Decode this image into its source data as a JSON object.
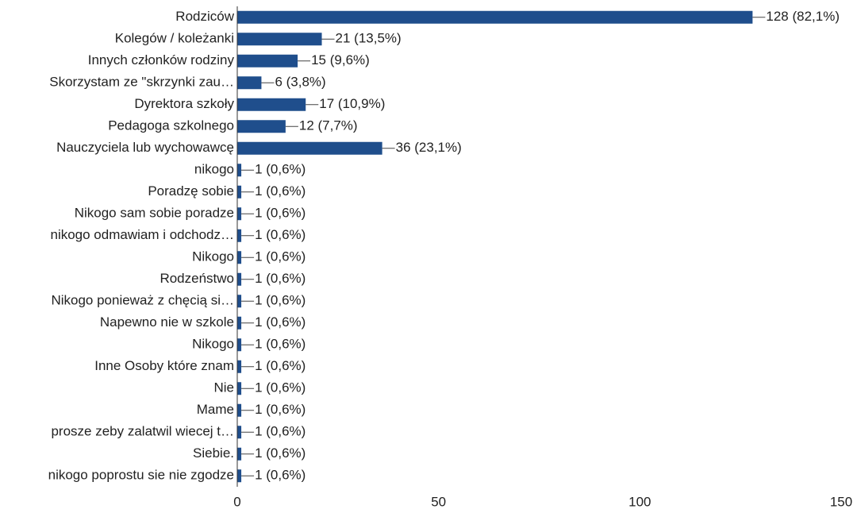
{
  "chart_data": {
    "type": "bar",
    "orientation": "horizontal",
    "categories": [
      "Rodziców",
      "Kolegów / koleżanki",
      "Innych członków rodziny",
      "Skorzystam ze \"skrzynki zau…",
      "Dyrektora szkoły",
      "Pedagoga szkolnego",
      "Nauczyciela lub wychowawcę",
      "nikogo",
      "Poradzę sobie",
      "Nikogo sam sobie poradze",
      "nikogo odmawiam i odchodz…",
      "Nikogo",
      "Rodzeństwo",
      "Nikogo ponieważ z chęcią si…",
      "Napewno nie w szkole",
      "Nikogo",
      "Inne Osoby które znam",
      "Nie",
      "Mame",
      "prosze zeby zalatwil wiecej t…",
      "Siebie.",
      "nikogo poprostu sie nie zgodze"
    ],
    "values": [
      128,
      21,
      15,
      6,
      17,
      12,
      36,
      1,
      1,
      1,
      1,
      1,
      1,
      1,
      1,
      1,
      1,
      1,
      1,
      1,
      1,
      1
    ],
    "value_labels": [
      "128 (82,1%)",
      "21 (13,5%)",
      "15 (9,6%)",
      "6 (3,8%)",
      "17 (10,9%)",
      "12 (7,7%)",
      "36 (23,1%)",
      "1 (0,6%)",
      "1 (0,6%)",
      "1 (0,6%)",
      "1 (0,6%)",
      "1 (0,6%)",
      "1 (0,6%)",
      "1 (0,6%)",
      "1 (0,6%)",
      "1 (0,6%)",
      "1 (0,6%)",
      "1 (0,6%)",
      "1 (0,6%)",
      "1 (0,6%)",
      "1 (0,6%)",
      "1 (0,6%)"
    ],
    "color": "#1f4e8c",
    "xlim": [
      0,
      150
    ],
    "xticks": [
      0,
      50,
      100,
      150
    ],
    "grid": false
  }
}
